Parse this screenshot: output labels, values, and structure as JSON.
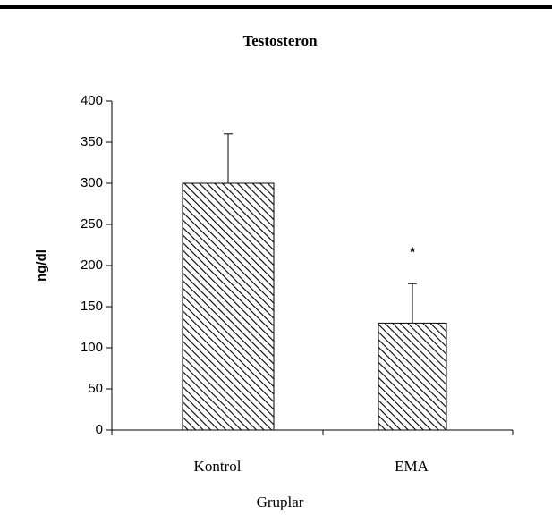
{
  "chart_data": {
    "type": "bar",
    "title": "Testosteron",
    "categories": [
      "Kontrol",
      "EMA"
    ],
    "values": [
      300,
      130
    ],
    "errors": [
      60,
      48
    ],
    "color": "#000000",
    "xlabel": "Gruplar",
    "ylabel": "ng/dl",
    "annotations": [
      {
        "text": "*",
        "category": 1,
        "value": 220
      }
    ],
    "ylim": [
      0,
      400
    ],
    "yticks": [
      0,
      50,
      100,
      150,
      200,
      250,
      300,
      350,
      400
    ],
    "grid": false
  }
}
